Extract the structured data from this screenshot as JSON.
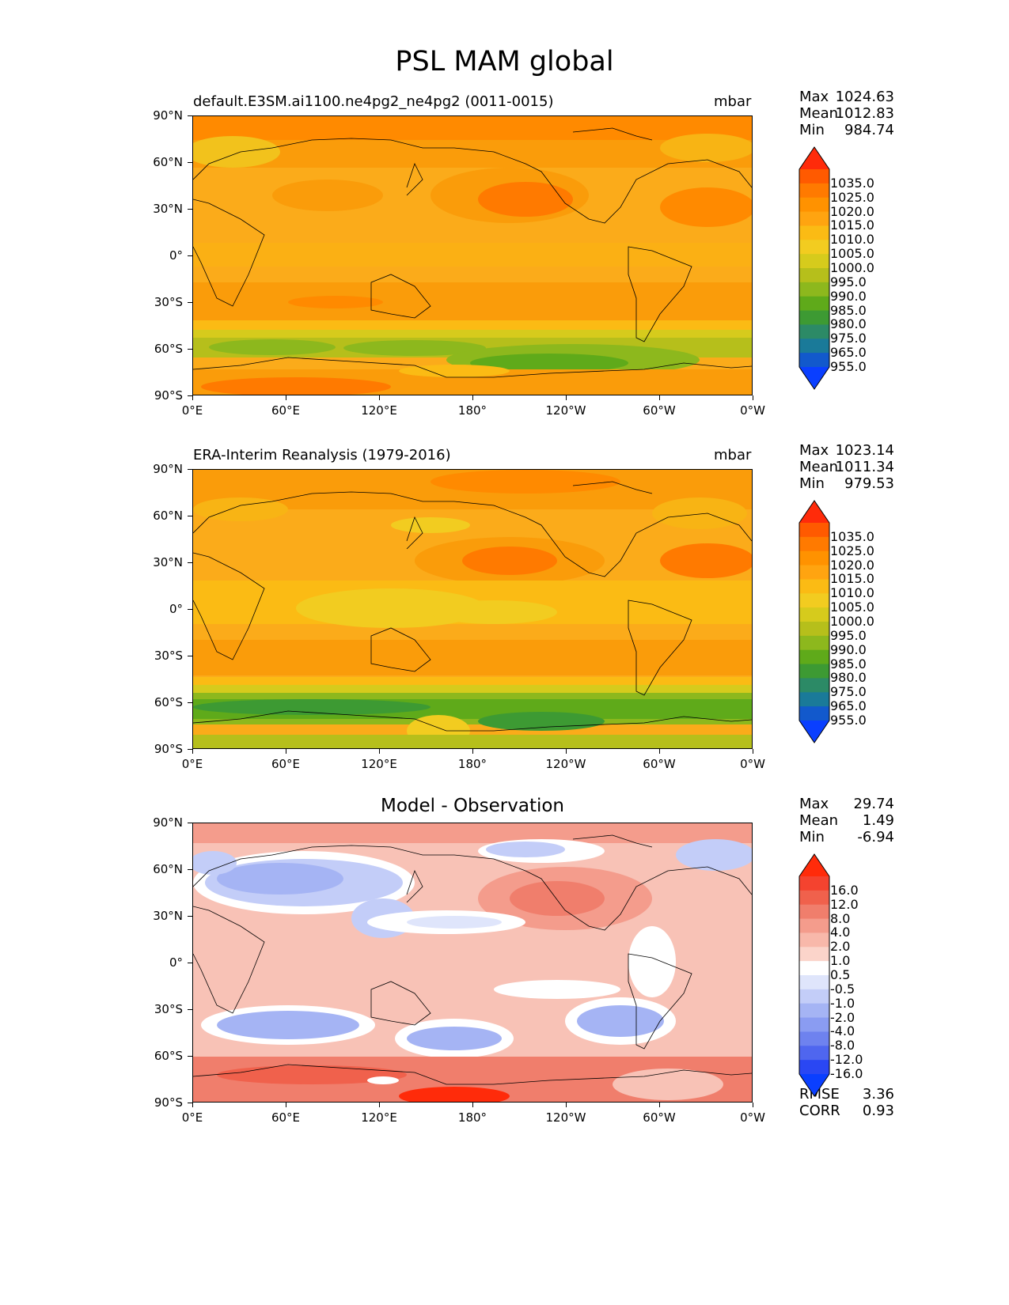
{
  "title": "PSL MAM global",
  "x_ticks": [
    "0°E",
    "60°E",
    "120°E",
    "180°",
    "120°W",
    "60°W",
    "0°W"
  ],
  "y_ticks": [
    "90°N",
    "60°N",
    "30°N",
    "0°",
    "30°S",
    "60°S",
    "90°S"
  ],
  "panels": [
    {
      "title": "default.E3SM.ai1100.ne4pg2_ne4pg2 (0011-0015)",
      "units": "mbar",
      "stats": [
        {
          "label": "Max",
          "value": "1024.63"
        },
        {
          "label": "Mean",
          "value": "1012.83"
        },
        {
          "label": "Min",
          "value": "984.74"
        }
      ],
      "colorbar": {
        "labels": [
          "1035.0",
          "1025.0",
          "1020.0",
          "1015.0",
          "1010.0",
          "1005.0",
          "1000.0",
          "995.0",
          "990.0",
          "985.0",
          "980.0",
          "975.0",
          "965.0",
          "955.0"
        ],
        "colors": [
          "#ff2b0a",
          "#ff5a00",
          "#ff7a00",
          "#ff9200",
          "#ffa410",
          "#fbbb14",
          "#f2cc20",
          "#d6cb1c",
          "#b6bf1b",
          "#8db81d",
          "#5faa1a",
          "#3d9a33",
          "#2c8a66",
          "#1a7a99",
          "#1259cc",
          "#0a3fff"
        ],
        "extend_top_color": "#ff2b0a",
        "extend_bottom_color": "#0a3fff"
      }
    },
    {
      "title": "ERA-Interim Reanalysis (1979-2016)",
      "units": "mbar",
      "stats": [
        {
          "label": "Max",
          "value": "1023.14"
        },
        {
          "label": "Mean",
          "value": "1011.34"
        },
        {
          "label": "Min",
          "value": "979.53"
        }
      ],
      "colorbar": {
        "labels": [
          "1035.0",
          "1025.0",
          "1020.0",
          "1015.0",
          "1010.0",
          "1005.0",
          "1000.0",
          "995.0",
          "990.0",
          "985.0",
          "980.0",
          "975.0",
          "965.0",
          "955.0"
        ],
        "colors": [
          "#ff2b0a",
          "#ff5a00",
          "#ff7a00",
          "#ff9200",
          "#ffa410",
          "#fbbb14",
          "#f2cc20",
          "#d6cb1c",
          "#b6bf1b",
          "#8db81d",
          "#5faa1a",
          "#3d9a33",
          "#2c8a66",
          "#1a7a99",
          "#1259cc",
          "#0a3fff"
        ],
        "extend_top_color": "#ff2b0a",
        "extend_bottom_color": "#0a3fff"
      }
    },
    {
      "title": "Model - Observation",
      "units": "",
      "stats": [
        {
          "label": "Max",
          "value": "29.74"
        },
        {
          "label": "Mean",
          "value": "1.49"
        },
        {
          "label": "Min",
          "value": "-6.94"
        }
      ],
      "footer": [
        {
          "label": "RMSE",
          "value": "3.36"
        },
        {
          "label": "CORR",
          "value": "0.93"
        }
      ],
      "colorbar": {
        "labels": [
          "16.0",
          "12.0",
          "8.0",
          "4.0",
          "2.0",
          "1.0",
          "0.5",
          "-0.5",
          "-1.0",
          "-2.0",
          "-4.0",
          "-8.0",
          "-12.0",
          "-16.0"
        ],
        "colors": [
          "#ff2b0a",
          "#f4432f",
          "#f0614c",
          "#f07e6c",
          "#f49c8c",
          "#f8b8aa",
          "#fbd4ca",
          "#ffffff",
          "#dfe5fb",
          "#c3cdf8",
          "#a5b4f4",
          "#8a9cf2",
          "#6e82ef",
          "#4f66ef",
          "#2a47f3",
          "#0a3fff"
        ],
        "extend_top_color": "#ff2b0a",
        "extend_bottom_color": "#0a3fff"
      }
    }
  ],
  "colors": {
    "ocean_base_1": "#fbab1a",
    "ocean_base_2": "#fbab1a",
    "diff_base": "#f8c2b6",
    "coastline": "#000000"
  }
}
